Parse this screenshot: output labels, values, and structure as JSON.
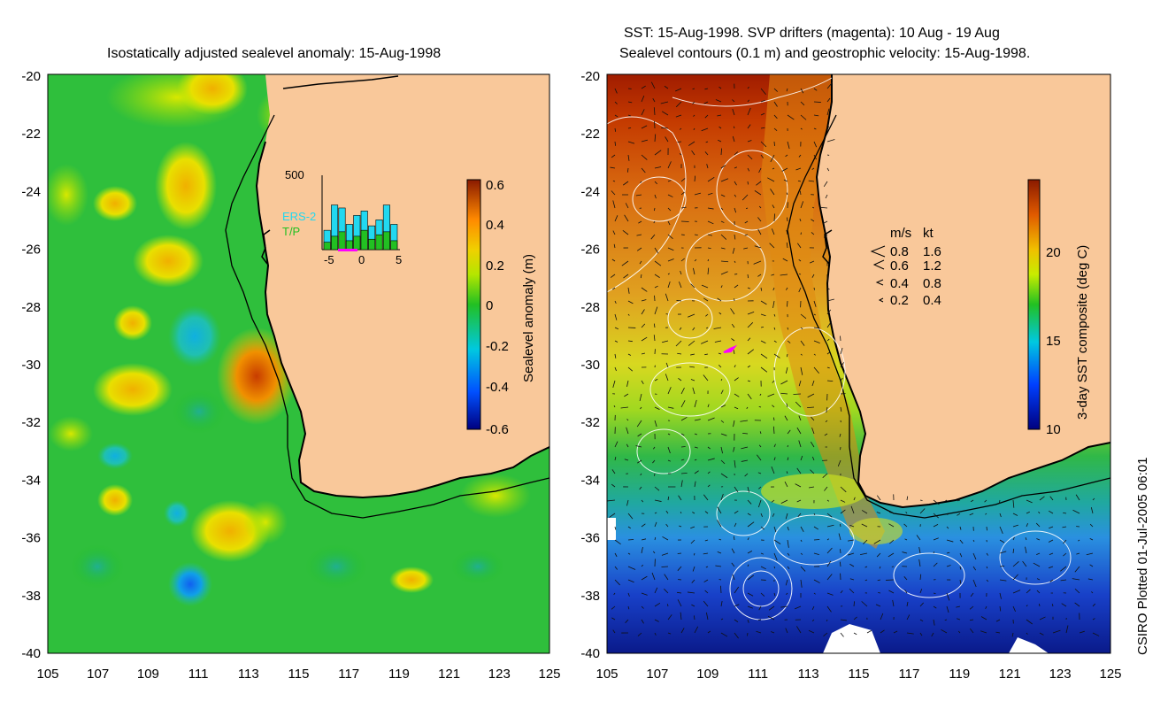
{
  "left_panel": {
    "title": "Isostatically adjusted sealevel anomaly: 15-Aug-1998",
    "colorbar": {
      "label": "Sealevel anomaly (m)",
      "ticks": [
        "0.6",
        "0.4",
        "0.2",
        "0",
        "-0.2",
        "-0.4",
        "-0.6"
      ]
    },
    "inset": {
      "ymax_label": "500",
      "legend_ers": "ERS-2",
      "legend_tp": "T/P",
      "x_ticks": [
        "-5",
        "0",
        "5"
      ],
      "ers_color": "#22d8f0",
      "tp_color": "#22c022",
      "ers_values": [
        130,
        300,
        280,
        170,
        230,
        260,
        160,
        200,
        300,
        170
      ],
      "tp_values": [
        50,
        90,
        120,
        60,
        90,
        130,
        70,
        100,
        120,
        60
      ]
    }
  },
  "right_panel": {
    "title_line1": "SST: 15-Aug-1998. SVP drifters (magenta): 10 Aug - 19 Aug",
    "title_line2": "Sealevel contours (0.1 m) and geostrophic velocity: 15-Aug-1998.",
    "colorbar": {
      "label": "3-day SST composite (deg C)",
      "ticks": [
        "20",
        "15",
        "10"
      ]
    },
    "legend": {
      "header_ms": "m/s",
      "header_kt": "kt",
      "rows": [
        {
          "ms": "0.8",
          "kt": "1.6"
        },
        {
          "ms": "0.6",
          "kt": "1.2"
        },
        {
          "ms": "0.4",
          "kt": "0.8"
        },
        {
          "ms": "0.2",
          "kt": "0.4"
        }
      ]
    }
  },
  "axes": {
    "y_ticks": [
      "-20",
      "-22",
      "-24",
      "-26",
      "-28",
      "-30",
      "-32",
      "-34",
      "-36",
      "-38",
      "-40"
    ],
    "x_ticks": [
      "105",
      "107",
      "109",
      "111",
      "113",
      "115",
      "117",
      "119",
      "121",
      "123",
      "125"
    ]
  },
  "footer": {
    "credit": "CSIRO Plotted 01-Jul-2005 06:01"
  },
  "colors": {
    "land": "#f9c89a",
    "ocean_green": "#2fbf3c",
    "coast": "#000000"
  }
}
